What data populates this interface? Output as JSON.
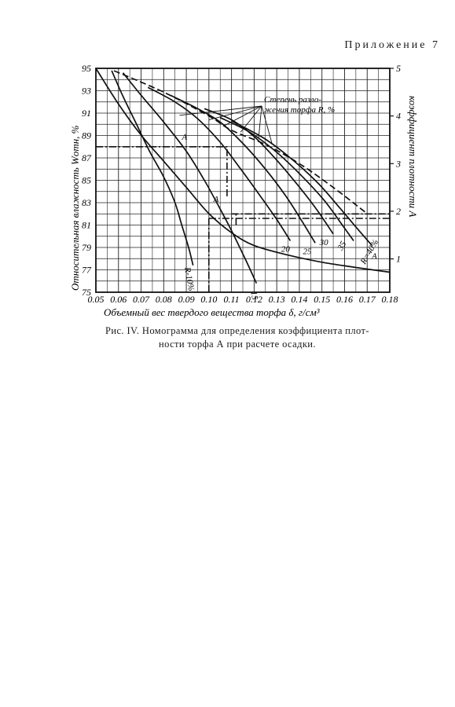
{
  "header": {
    "appendix_label": "Приложение 7"
  },
  "caption": {
    "line1": "Рис. IV. Номограмма для определения коэффициента плот-",
    "line2": "ности торфа А при расчете осадки."
  },
  "chart_data": {
    "type": "line",
    "xlabel": "Объемный вес твердого вещества торфа δ, г/см³",
    "ylabel": "Относительная влажность Wотн, %",
    "y2label": "коэффициент плотности А",
    "annotation": "Степень разложения торфа R, %",
    "x_ticks": [
      "0.05",
      "0.06",
      "0.07",
      "0.08",
      "0.09",
      "0.10",
      "0.11",
      "0.12",
      "0.13",
      "0.14",
      "0.15",
      "0.16",
      "0.17",
      "0.18"
    ],
    "y_ticks": [
      75,
      77,
      79,
      81,
      83,
      85,
      87,
      89,
      91,
      93,
      95
    ],
    "y2_ticks": [
      1,
      2,
      3,
      4,
      5
    ],
    "xlim": [
      0.05,
      0.18
    ],
    "ylim": [
      75,
      95
    ],
    "y2lim": [
      0.3,
      5
    ],
    "grid": true,
    "series": [
      {
        "name": "R-10%",
        "axis": "left",
        "points": [
          [
            0.057,
            94.8
          ],
          [
            0.062,
            92.5
          ],
          [
            0.068,
            90.0
          ],
          [
            0.074,
            87.5
          ],
          [
            0.08,
            85.3
          ],
          [
            0.085,
            83.0
          ],
          [
            0.088,
            81.0
          ],
          [
            0.091,
            79.0
          ],
          [
            0.093,
            77.4
          ]
        ]
      },
      {
        "name": "15",
        "axis": "left",
        "points": [
          [
            0.062,
            94.6
          ],
          [
            0.07,
            92.6
          ],
          [
            0.08,
            90.2
          ],
          [
            0.09,
            87.6
          ],
          [
            0.098,
            85.0
          ],
          [
            0.104,
            82.8
          ],
          [
            0.11,
            80.5
          ],
          [
            0.116,
            78.0
          ],
          [
            0.121,
            75.8
          ]
        ]
      },
      {
        "name": "20",
        "axis": "left",
        "points": [
          [
            0.073,
            93.3
          ],
          [
            0.085,
            92.0
          ],
          [
            0.095,
            90.5
          ],
          [
            0.105,
            88.4
          ],
          [
            0.113,
            86.3
          ],
          [
            0.122,
            83.8
          ],
          [
            0.13,
            81.5
          ],
          [
            0.136,
            79.6
          ]
        ]
      },
      {
        "name": "25",
        "axis": "left",
        "points": [
          [
            0.083,
            92.6
          ],
          [
            0.095,
            91.4
          ],
          [
            0.105,
            90.2
          ],
          [
            0.115,
            88.3
          ],
          [
            0.125,
            86.0
          ],
          [
            0.134,
            83.6
          ],
          [
            0.141,
            81.4
          ],
          [
            0.147,
            79.4
          ]
        ]
      },
      {
        "name": "30",
        "axis": "left",
        "points": [
          [
            0.098,
            91.4
          ],
          [
            0.11,
            90.4
          ],
          [
            0.12,
            88.9
          ],
          [
            0.13,
            86.8
          ],
          [
            0.14,
            84.4
          ],
          [
            0.148,
            82.3
          ],
          [
            0.155,
            80.2
          ]
        ]
      },
      {
        "name": "35",
        "axis": "left",
        "points": [
          [
            0.105,
            90.6
          ],
          [
            0.118,
            89.3
          ],
          [
            0.13,
            87.5
          ],
          [
            0.141,
            85.4
          ],
          [
            0.151,
            83.2
          ],
          [
            0.159,
            81.0
          ],
          [
            0.164,
            79.6
          ]
        ]
      },
      {
        "name": "R=40%",
        "axis": "left",
        "points": [
          [
            0.11,
            90.3
          ],
          [
            0.124,
            88.8
          ],
          [
            0.136,
            87.0
          ],
          [
            0.148,
            84.8
          ],
          [
            0.158,
            82.5
          ],
          [
            0.166,
            80.6
          ],
          [
            0.172,
            79.2
          ]
        ]
      },
      {
        "name": "A",
        "axis": "right",
        "points": [
          [
            0.05,
            5.0
          ],
          [
            0.06,
            4.25
          ],
          [
            0.07,
            3.6
          ],
          [
            0.08,
            3.05
          ],
          [
            0.09,
            2.5
          ],
          [
            0.1,
            1.95
          ],
          [
            0.11,
            1.55
          ],
          [
            0.12,
            1.28
          ],
          [
            0.135,
            1.08
          ],
          [
            0.15,
            0.93
          ],
          [
            0.165,
            0.82
          ],
          [
            0.18,
            0.72
          ]
        ]
      },
      {
        "name": "A",
        "axis": "right",
        "points": [
          [
            0.058,
            4.95
          ],
          [
            0.08,
            4.5
          ],
          [
            0.1,
            4.0
          ],
          [
            0.11,
            3.7
          ],
          [
            0.125,
            3.4
          ],
          [
            0.14,
            3.0
          ],
          [
            0.155,
            2.5
          ],
          [
            0.17,
            1.95
          ]
        ]
      }
    ],
    "example_lines": [
      {
        "style": "dash-dot",
        "points": [
          [
            0.05,
            88.0
          ],
          [
            0.108,
            88.0
          ],
          [
            0.108,
            83.4
          ]
        ]
      },
      {
        "style": "dash-dot",
        "points": [
          [
            0.1,
            81.6
          ],
          [
            0.1,
            75.0
          ]
        ]
      },
      {
        "style": "dash-dot",
        "points": [
          [
            0.1,
            81.6
          ],
          [
            0.18,
            81.6
          ]
        ]
      },
      {
        "style": "dash-dot",
        "points": [
          [
            0.11,
            82.0
          ],
          [
            0.18,
            82.0
          ]
        ]
      },
      {
        "style": "dash-dot",
        "points": [
          [
            0.112,
            81.0
          ],
          [
            0.112,
            82.0
          ]
        ]
      }
    ]
  }
}
